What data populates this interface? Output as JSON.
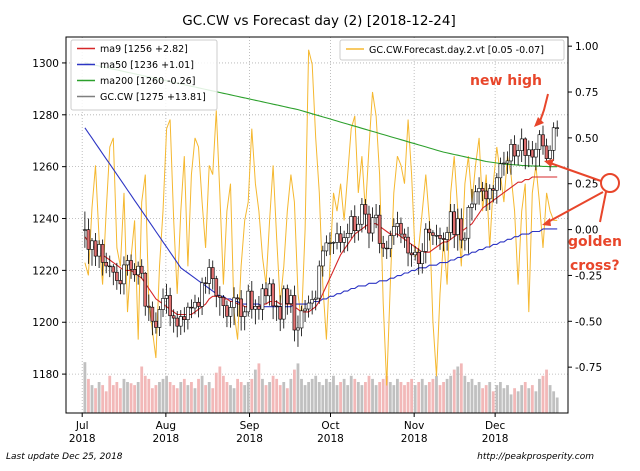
{
  "chart_data": {
    "type": "candlestick",
    "title": "GC.CW vs Forecast day (2)  [2018-12-24]",
    "x_tick_labels": [
      {
        "month": "Jul",
        "year": "2018",
        "date": "2018-07-01"
      },
      {
        "month": "Aug",
        "year": "2018",
        "date": "2018-08-01"
      },
      {
        "month": "Sep",
        "year": "2018",
        "date": "2018-09-01"
      },
      {
        "month": "Oct",
        "year": "2018",
        "date": "2018-10-01"
      },
      {
        "month": "Nov",
        "year": "2018",
        "date": "2018-11-01"
      },
      {
        "month": "Dec",
        "year": "2018",
        "date": "2018-12-01"
      }
    ],
    "x_range": [
      "2018-06-25",
      "2018-12-28"
    ],
    "y_left": {
      "range": [
        1165,
        1310
      ],
      "ticks": [
        1180,
        1200,
        1220,
        1240,
        1260,
        1280,
        1300
      ]
    },
    "y_right": {
      "range": [
        -1.0,
        1.05
      ],
      "ticks": [
        "1.00",
        "0.75",
        "0.50",
        "0.25",
        "0.00",
        "-0.25",
        "-0.50",
        "-0.75"
      ]
    },
    "legend_left": {
      "placement": "upper-left",
      "entries": [
        {
          "label": "ma9 [1256 +2.82]",
          "color": "#d62728"
        },
        {
          "label": "ma50 [1236 +1.01]",
          "color": "#2d35c4"
        },
        {
          "label": "ma200 [1260 -0.26]",
          "color": "#2ca02c"
        },
        {
          "label": "GC.CW [1275 +13.81]",
          "color": "#7f7f7f"
        }
      ]
    },
    "legend_right": {
      "placement": "upper-right",
      "entries": [
        {
          "label": "GC.CW.Forecast.day.2.vt [0.05 -0.07]",
          "color": "#f5b830"
        }
      ]
    },
    "annotations": [
      {
        "text": "new high",
        "color": "#e8462b"
      },
      {
        "text": "golden",
        "color": "#e8462b"
      },
      {
        "text": "cross?",
        "color": "#e8462b"
      }
    ],
    "ohlc_open": [
      1235.5,
      1235.7,
      1228.1,
      1231.4,
      1225.5,
      1230.0,
      1223.1,
      1221.7,
      1221.4,
      1219.3,
      1216.1,
      1214.8,
      1222.1,
      1223.8,
      1220.4,
      1218.3,
      1221.6,
      1218.9,
      1206.2,
      1205.8,
      1200.4,
      1198.0,
      1204.9,
      1209.2,
      1210.3,
      1202.5,
      1201.6,
      1198.5,
      1202.2,
      1201.0,
      1205.8,
      1205.5,
      1207.7,
      1206.1,
      1215.2,
      1215.0,
      1221.1,
      1216.8,
      1210.2,
      1209.6,
      1206.4,
      1202.3,
      1205.7,
      1209.4,
      1209.0,
      1202.2,
      1204.0,
      1212.0,
      1205.0,
      1206.1,
      1205.0,
      1212.9,
      1210.2,
      1214.8,
      1206.3,
      1206.0,
      1201.2,
      1212.9,
      1207.2,
      1210.3,
      1197.0,
      1197.8,
      1204.4,
      1205.1,
      1207.4,
      1208.8,
      1209.3,
      1221.7,
      1227.5,
      1230.6,
      1230.6,
      1230.8,
      1234.1,
      1230.8,
      1232.6,
      1234.3,
      1240.8,
      1235.3,
      1237.8,
      1245.4,
      1241.7,
      1234.4,
      1240.3,
      1241.3,
      1230.4,
      1228.6,
      1228.4,
      1233.4,
      1236.9,
      1238.1,
      1234.0,
      1232.8,
      1226.7,
      1226.0,
      1227.0,
      1222.6,
      1227.3,
      1235.9,
      1234.5,
      1233.5,
      1233.5,
      1232.3,
      1231.9,
      1234.6,
      1242.6,
      1233.8,
      1239.9,
      1231.7,
      1232.4,
      1244.3,
      1245.6,
      1250.3,
      1251.6,
      1250.6,
      1247.6,
      1251.5,
      1250.9,
      1255.7,
      1261.1,
      1261.4,
      1262.2,
      1268.6,
      1264.1,
      1266.2,
      1270.7,
      1264.3,
      1266.5,
      1263.7,
      1266.7,
      1272.3,
      1268.0,
      1263.1,
      1266.3,
      1275.0
    ],
    "ohlc_high": [
      1242.7,
      1240.0,
      1232.5,
      1234.4,
      1231.6,
      1231.9,
      1226.8,
      1225.7,
      1222.4,
      1222.9,
      1220.4,
      1225.4,
      1226.0,
      1226.1,
      1222.8,
      1223.4,
      1224.3,
      1219.4,
      1210.7,
      1208.0,
      1203.8,
      1206.2,
      1213.0,
      1214.8,
      1213.3,
      1205.0,
      1204.3,
      1204.7,
      1205.8,
      1207.6,
      1208.8,
      1210.6,
      1209.6,
      1217.2,
      1217.5,
      1224.4,
      1223.8,
      1217.9,
      1213.9,
      1210.5,
      1208.4,
      1208.1,
      1213.5,
      1210.8,
      1212.4,
      1206.2,
      1214.5,
      1215.9,
      1208.8,
      1210.1,
      1214.8,
      1215.4,
      1217.2,
      1216.6,
      1208.5,
      1210.4,
      1214.2,
      1214.5,
      1212.6,
      1214.1,
      1202.6,
      1206.4,
      1208.6,
      1210.3,
      1212.2,
      1212.2,
      1223.8,
      1229.5,
      1233.5,
      1234.6,
      1231.2,
      1238.4,
      1237.1,
      1235.3,
      1238.0,
      1243.2,
      1245.1,
      1240.9,
      1247.9,
      1247.5,
      1244.9,
      1244.3,
      1245.6,
      1245.2,
      1233.3,
      1231.4,
      1235.3,
      1240.1,
      1242.6,
      1240.4,
      1236.1,
      1236.8,
      1230.2,
      1229.4,
      1228.5,
      1230.5,
      1238.2,
      1239.0,
      1235.5,
      1237.6,
      1236.5,
      1234.6,
      1236.8,
      1245.6,
      1245.6,
      1243.8,
      1243.9,
      1234.7,
      1245.1,
      1251.4,
      1252.9,
      1255.9,
      1254.1,
      1253.7,
      1253.2,
      1252.9,
      1257.5,
      1263.5,
      1265.7,
      1265.9,
      1270.6,
      1272.1,
      1268.5,
      1274.7,
      1271.3,
      1270.1,
      1269.9,
      1269.2,
      1274.1,
      1275.8,
      1270.8,
      1268.2,
      1277.1,
      1277.8
    ],
    "ohlc_low": [
      1228.7,
      1222.5,
      1221.8,
      1221.7,
      1220.9,
      1218.0,
      1218.9,
      1217.4,
      1214.3,
      1212.5,
      1210.8,
      1210.7,
      1218.0,
      1216.7,
      1215.6,
      1214.5,
      1216.9,
      1202.5,
      1200.5,
      1195.0,
      1195.6,
      1194.7,
      1202.0,
      1203.3,
      1198.5,
      1196.0,
      1194.2,
      1195.1,
      1196.1,
      1197.2,
      1201.6,
      1203.1,
      1201.9,
      1202.8,
      1211.0,
      1210.8,
      1212.6,
      1205.8,
      1202.5,
      1201.6,
      1198.1,
      1197.9,
      1198.9,
      1202.2,
      1196.8,
      1196.9,
      1202.2,
      1201.4,
      1199.2,
      1201.0,
      1200.8,
      1207.2,
      1206.4,
      1201.2,
      1200.5,
      1196.6,
      1197.6,
      1202.9,
      1203.6,
      1192.6,
      1190.5,
      1194.6,
      1200.1,
      1201.8,
      1203.0,
      1204.6,
      1207.1,
      1217.6,
      1225.5,
      1225.9,
      1226.3,
      1228.1,
      1226.9,
      1226.8,
      1227.4,
      1232.4,
      1230.6,
      1231.5,
      1234.6,
      1235.7,
      1228.6,
      1231.1,
      1236.3,
      1226.6,
      1225.2,
      1224.4,
      1225.1,
      1229.8,
      1232.7,
      1230.5,
      1228.7,
      1221.6,
      1221.4,
      1223.8,
      1218.3,
      1218.8,
      1222.7,
      1231.5,
      1229.8,
      1229.6,
      1227.9,
      1227.4,
      1227.6,
      1231.8,
      1228.6,
      1227.6,
      1228.5,
      1227.7,
      1226.4,
      1239.2,
      1243.2,
      1245.3,
      1246.7,
      1242.9,
      1243.3,
      1246.2,
      1245.7,
      1250.9,
      1256.5,
      1257.2,
      1256.9,
      1260.8,
      1260.5,
      1261.8,
      1259.0,
      1259.8,
      1260.8,
      1258.6,
      1260.1,
      1264.6,
      1262.0,
      1258.3,
      1262.3,
      1271.6
    ],
    "ohlc_close": [
      1235.7,
      1228.1,
      1231.4,
      1225.5,
      1230.0,
      1223.1,
      1221.7,
      1221.4,
      1219.3,
      1216.1,
      1214.8,
      1222.1,
      1223.8,
      1220.4,
      1218.3,
      1221.6,
      1218.9,
      1206.2,
      1205.8,
      1200.4,
      1198.0,
      1204.9,
      1209.2,
      1210.3,
      1202.5,
      1201.6,
      1198.5,
      1202.2,
      1201.0,
      1205.8,
      1205.5,
      1207.7,
      1206.1,
      1215.2,
      1215.0,
      1221.1,
      1216.8,
      1210.2,
      1209.6,
      1206.4,
      1202.3,
      1205.7,
      1209.4,
      1209.0,
      1202.2,
      1204.0,
      1212.0,
      1205.0,
      1206.1,
      1205.0,
      1212.9,
      1210.2,
      1214.8,
      1206.3,
      1206.0,
      1201.2,
      1212.9,
      1207.2,
      1210.3,
      1197.0,
      1197.8,
      1204.4,
      1205.1,
      1207.4,
      1208.8,
      1209.3,
      1221.7,
      1227.5,
      1230.6,
      1230.6,
      1230.8,
      1234.1,
      1230.8,
      1232.6,
      1234.3,
      1240.8,
      1235.3,
      1237.8,
      1245.4,
      1241.7,
      1234.4,
      1240.3,
      1241.3,
      1230.4,
      1228.6,
      1228.4,
      1233.4,
      1236.9,
      1238.1,
      1234.0,
      1232.8,
      1226.7,
      1226.0,
      1227.0,
      1222.6,
      1227.3,
      1235.9,
      1234.5,
      1233.5,
      1233.5,
      1232.3,
      1231.9,
      1234.6,
      1242.6,
      1233.8,
      1239.9,
      1231.7,
      1232.4,
      1244.3,
      1245.6,
      1250.3,
      1251.6,
      1250.6,
      1247.6,
      1251.5,
      1250.9,
      1255.7,
      1261.1,
      1261.4,
      1262.2,
      1268.6,
      1264.1,
      1266.2,
      1270.7,
      1264.3,
      1266.5,
      1263.7,
      1266.7,
      1272.3,
      1268.0,
      1263.1,
      1266.3,
      1275.0,
      1275.0
    ],
    "ma9": [
      1233,
      1231,
      1230,
      1228,
      1227,
      1226,
      1225,
      1224,
      1223,
      1222,
      1221,
      1220,
      1220,
      1220,
      1219,
      1218,
      1217,
      1215,
      1213,
      1211,
      1209,
      1208,
      1207,
      1206,
      1205,
      1204,
      1203,
      1203,
      1203,
      1203,
      1203,
      1204,
      1205,
      1206,
      1207,
      1209,
      1210,
      1210,
      1210,
      1209,
      1209,
      1208,
      1208,
      1207,
      1207,
      1206,
      1206,
      1206,
      1206,
      1206,
      1207,
      1207,
      1208,
      1208,
      1208,
      1207,
      1207,
      1207,
      1207,
      1206,
      1205,
      1204,
      1204,
      1204,
      1205,
      1206,
      1208,
      1211,
      1214,
      1217,
      1220,
      1223,
      1226,
      1228,
      1230,
      1232,
      1234,
      1235,
      1236,
      1237,
      1238,
      1238,
      1238,
      1237,
      1236,
      1235,
      1234,
      1234,
      1234,
      1233,
      1232,
      1231,
      1230,
      1229,
      1228,
      1227,
      1227,
      1227,
      1228,
      1229,
      1230,
      1231,
      1231,
      1232,
      1233,
      1234,
      1235,
      1236,
      1237,
      1238,
      1240,
      1242,
      1244,
      1245,
      1246,
      1247,
      1248,
      1249,
      1250,
      1251,
      1252,
      1253,
      1254,
      1254,
      1255,
      1255,
      1256,
      1256,
      1256,
      1256,
      1256,
      1256,
      1256,
      1256
    ],
    "ma50": [
      1275,
      1273,
      1271,
      1269,
      1267,
      1265,
      1263,
      1261,
      1259,
      1257,
      1255,
      1253,
      1251,
      1249,
      1247,
      1245,
      1243,
      1241,
      1239,
      1237,
      1235,
      1233,
      1231,
      1229,
      1227,
      1225,
      1223,
      1221,
      1220,
      1219,
      1218,
      1217,
      1216,
      1215,
      1214,
      1213,
      1212,
      1211,
      1210,
      1210,
      1209,
      1209,
      1208,
      1208,
      1207,
      1207,
      1207,
      1207,
      1207,
      1207,
      1206,
      1206,
      1206,
      1206,
      1206,
      1206,
      1206,
      1206,
      1206,
      1207,
      1207,
      1207,
      1207,
      1207,
      1208,
      1208,
      1208,
      1209,
      1209,
      1210,
      1210,
      1211,
      1211,
      1212,
      1212,
      1213,
      1213,
      1214,
      1214,
      1214,
      1215,
      1215,
      1215,
      1216,
      1216,
      1216,
      1217,
      1217,
      1218,
      1218,
      1219,
      1219,
      1220,
      1220,
      1221,
      1221,
      1221,
      1222,
      1222,
      1222,
      1223,
      1223,
      1223,
      1224,
      1224,
      1225,
      1225,
      1226,
      1226,
      1227,
      1227,
      1228,
      1228,
      1229,
      1229,
      1230,
      1230,
      1231,
      1231,
      1232,
      1232,
      1233,
      1233,
      1234,
      1234,
      1234,
      1235,
      1235,
      1235,
      1236,
      1236,
      1236,
      1236,
      1236
    ],
    "ma200": [
      1300,
      1299.7,
      1299.4,
      1299.1,
      1298.8,
      1298.5,
      1298.2,
      1297.9,
      1297.6,
      1297.3,
      1297,
      1296.7,
      1296.4,
      1296.1,
      1295.8,
      1295.5,
      1295.2,
      1294.9,
      1294.6,
      1294.3,
      1294,
      1293.7,
      1293.4,
      1293.1,
      1292.8,
      1292.5,
      1292.2,
      1291.9,
      1291.6,
      1291.3,
      1291,
      1290.7,
      1290.4,
      1290.1,
      1289.8,
      1289.5,
      1289.2,
      1288.9,
      1288.6,
      1288.3,
      1288,
      1287.7,
      1287.4,
      1287.1,
      1286.8,
      1286.5,
      1286.2,
      1285.9,
      1285.6,
      1285.3,
      1285,
      1284.7,
      1284.4,
      1284.1,
      1283.8,
      1283.5,
      1283.2,
      1282.9,
      1282.6,
      1282.3,
      1282,
      1281.6,
      1281.2,
      1280.8,
      1280.4,
      1280,
      1279.6,
      1279.2,
      1278.8,
      1278.4,
      1278,
      1277.6,
      1277.2,
      1276.8,
      1276.4,
      1276,
      1275.6,
      1275.2,
      1274.8,
      1274.4,
      1274,
      1273.6,
      1273.2,
      1272.8,
      1272.4,
      1272,
      1271.6,
      1271.2,
      1270.8,
      1270.4,
      1270,
      1269.6,
      1269.2,
      1268.8,
      1268.4,
      1268,
      1267.6,
      1267.2,
      1266.8,
      1266.4,
      1266,
      1265.6,
      1265.3,
      1265,
      1264.7,
      1264.4,
      1264.1,
      1263.8,
      1263.5,
      1263.2,
      1262.9,
      1262.6,
      1262.3,
      1262,
      1261.8,
      1261.6,
      1261.4,
      1261.2,
      1261,
      1260.9,
      1260.8,
      1260.7,
      1260.6,
      1260.5,
      1260.4,
      1260.3,
      1260.3,
      1260.2,
      1260.2,
      1260.1,
      1260.1,
      1260,
      1260,
      1260
    ],
    "forecast": [
      -0.18,
      -0.25,
      0.12,
      0.35,
      -0.05,
      -0.3,
      0.1,
      0.45,
      0.5,
      -0.1,
      -0.2,
      0.2,
      -0.45,
      -0.15,
      0.05,
      -0.6,
      0.15,
      0.3,
      -0.4,
      -0.55,
      -0.7,
      -0.2,
      0.1,
      0.55,
      0.6,
      0.05,
      -0.35,
      0.1,
      0.4,
      -0.2,
      0.3,
      0.5,
      0.45,
      0.15,
      -0.1,
      0.35,
      0.3,
      0.65,
      0.2,
      -0.3,
      0.1,
      0.25,
      -0.45,
      -0.6,
      -0.2,
      0.05,
      0.15,
      0.55,
      0.25,
      0.1,
      -0.15,
      -0.3,
      0.05,
      0.35,
      -0.05,
      -0.4,
      -0.2,
      0.1,
      0.3,
      0.15,
      -0.35,
      -0.5,
      0.0,
      0.98,
      0.9,
      0.5,
      0.2,
      -0.3,
      -0.6,
      -0.2,
      0.2,
      0.1,
      0.25,
      0.05,
      0.3,
      0.55,
      0.62,
      0.2,
      0.4,
      0.1,
      0.45,
      0.75,
      0.62,
      0.3,
      -0.4,
      -0.85,
      -0.3,
      0.2,
      0.4,
      0.35,
      0.25,
      0.6,
      0.3,
      -0.15,
      -0.1,
      0.1,
      0.3,
      0.05,
      -0.5,
      -0.8,
      -0.35,
      -0.05,
      -0.3,
      0.2,
      0.4,
      0.1,
      -0.2,
      0.25,
      0.4,
      0.15,
      0.35,
      0.5,
      0.1,
      0.3,
      -0.1,
      0.25,
      0.45,
      0.3,
      0.15,
      0.4,
      0.3,
      0.1,
      -0.3,
      0.1,
      0.25,
      -0.45,
      0.2,
      0.35,
      0.15,
      -0.1,
      0.2,
      0.1,
      0.05,
      0.05
    ],
    "volume_relative": [
      0.82,
      0.55,
      0.45,
      0.4,
      0.5,
      0.45,
      0.35,
      0.6,
      0.45,
      0.5,
      0.4,
      0.55,
      0.5,
      0.48,
      0.45,
      0.5,
      0.75,
      0.6,
      0.55,
      0.4,
      0.45,
      0.5,
      0.55,
      0.6,
      0.5,
      0.45,
      0.4,
      0.5,
      0.55,
      0.45,
      0.5,
      0.4,
      0.55,
      0.6,
      0.45,
      0.5,
      0.4,
      0.65,
      0.75,
      0.6,
      0.5,
      0.45,
      0.4,
      0.55,
      0.5,
      0.45,
      0.5,
      0.55,
      0.7,
      0.8,
      0.55,
      0.45,
      0.5,
      0.6,
      0.55,
      0.45,
      0.5,
      0.4,
      0.55,
      0.7,
      0.8,
      0.55,
      0.45,
      0.5,
      0.55,
      0.6,
      0.5,
      0.45,
      0.55,
      0.5,
      0.6,
      0.45,
      0.5,
      0.55,
      0.45,
      0.6,
      0.55,
      0.5,
      0.45,
      0.5,
      0.6,
      0.55,
      0.45,
      0.5,
      0.55,
      0.6,
      0.5,
      0.45,
      0.55,
      0.5,
      0.45,
      0.5,
      0.55,
      0.45,
      0.5,
      0.55,
      0.45,
      0.5,
      0.55,
      0.6,
      0.45,
      0.5,
      0.55,
      0.6,
      0.7,
      0.75,
      0.8,
      0.6,
      0.5,
      0.55,
      0.45,
      0.5,
      0.4,
      0.45,
      0.5,
      0.35,
      0.45,
      0.5,
      0.4,
      0.45,
      0.3,
      0.4,
      0.35,
      0.45,
      0.5,
      0.4,
      0.45,
      0.35,
      0.55,
      0.6,
      0.7,
      0.45,
      0.35,
      0.25
    ],
    "grid": true
  },
  "footer": {
    "left": "Last update Dec 25, 2018",
    "right": "http://peakprosperity.com"
  }
}
